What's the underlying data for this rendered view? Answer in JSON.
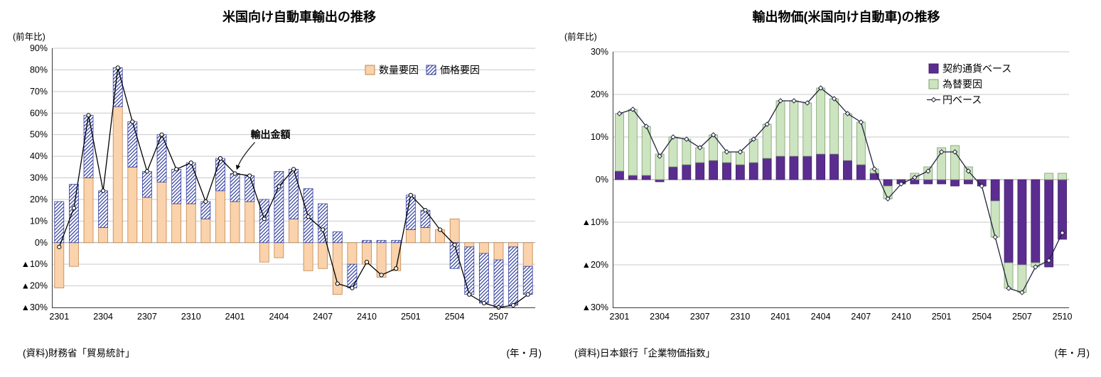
{
  "page": {
    "background": "#ffffff"
  },
  "chart_data": [
    {
      "type": "bar",
      "subtype": "stacked-bar-with-line",
      "title": "米国向け自動車輸出の推移",
      "y_unit": "(前年比)",
      "x_unit": "(年・月)",
      "source": "(資料)財務省「貿易統計」",
      "ylim": [
        -30,
        90
      ],
      "ytick_step": 10,
      "grid": true,
      "categories": [
        "2301",
        "2302",
        "2303",
        "2304",
        "2305",
        "2306",
        "2307",
        "2308",
        "2309",
        "2310",
        "2311",
        "2312",
        "2401",
        "2402",
        "2403",
        "2404",
        "2405",
        "2406",
        "2407",
        "2408",
        "2409",
        "2410",
        "2411",
        "2412",
        "2501",
        "2502",
        "2503",
        "2504",
        "2505",
        "2506",
        "2507",
        "2508",
        "2509"
      ],
      "x_tick_labels": [
        "2301",
        "2304",
        "2307",
        "2310",
        "2401",
        "2404",
        "2407",
        "2410",
        "2501",
        "2504",
        "2507"
      ],
      "series": [
        {
          "name": "数量要因",
          "type": "bar",
          "pattern": "solid",
          "fill": "#FAD2AB",
          "border": "#C0854C",
          "values": [
            -21,
            -11,
            30,
            7,
            63,
            35,
            21,
            28,
            18,
            18,
            11,
            24,
            19,
            19,
            -9,
            -7,
            11,
            -13,
            -12,
            -24,
            -10,
            -10,
            -16,
            -13,
            6,
            7,
            6,
            11,
            -2,
            -5,
            -8,
            -2,
            -11
          ]
        },
        {
          "name": "価格要因",
          "type": "bar",
          "pattern": "diagonal-hatch",
          "fill": "#ffffff",
          "hatch_color": "#3340A0",
          "border": "#3340A0",
          "values": [
            19,
            27,
            29,
            17,
            18,
            21,
            12,
            22,
            16,
            19,
            8,
            15,
            13,
            12,
            20,
            33,
            23,
            25,
            18,
            5,
            -11,
            1,
            1,
            1,
            16,
            8,
            0,
            -12,
            -22,
            -23,
            -22,
            -27,
            -13
          ]
        },
        {
          "name": "輸出金額",
          "type": "line",
          "color": "#000000",
          "marker": "circle",
          "values": [
            -2,
            16,
            59,
            24,
            81,
            56,
            33,
            50,
            34,
            37,
            19,
            39,
            32,
            31,
            11,
            26,
            34,
            12,
            6,
            -19,
            -21,
            -9,
            -15,
            -12,
            22,
            15,
            6,
            -1,
            -24,
            -28,
            -30,
            -29,
            -24
          ]
        }
      ],
      "annotation": {
        "text": "輸出金額",
        "category": "2401"
      }
    },
    {
      "type": "bar",
      "subtype": "stacked-bar-with-line",
      "title": "輸出物価(米国向け自動車)の推移",
      "y_unit": "(前年比)",
      "x_unit": "(年・月)",
      "source": "(資料)日本銀行「企業物価指数」",
      "ylim": [
        -30,
        30
      ],
      "ytick_step": 10,
      "grid": true,
      "categories": [
        "2301",
        "2302",
        "2303",
        "2304",
        "2305",
        "2306",
        "2307",
        "2308",
        "2309",
        "2310",
        "2311",
        "2312",
        "2401",
        "2402",
        "2403",
        "2404",
        "2405",
        "2406",
        "2407",
        "2408",
        "2409",
        "2410",
        "2411",
        "2412",
        "2501",
        "2502",
        "2503",
        "2504",
        "2505",
        "2506",
        "2507",
        "2508",
        "2509",
        "2510"
      ],
      "x_tick_labels": [
        "2301",
        "2304",
        "2307",
        "2310",
        "2401",
        "2404",
        "2407",
        "2410",
        "2501",
        "2504",
        "2507",
        "2510"
      ],
      "series": [
        {
          "name": "契約通貨ベース",
          "type": "bar",
          "pattern": "solid",
          "fill": "#5B2D90",
          "border": "#3F1F66",
          "values": [
            2,
            1,
            1,
            -0.5,
            3,
            3.5,
            4,
            4.5,
            4,
            3.5,
            4,
            5,
            5.5,
            5.5,
            5.5,
            6,
            6,
            4.5,
            3.5,
            1.5,
            -1.5,
            -1,
            -1,
            -1,
            -1,
            -1.5,
            -1,
            -1.5,
            -5,
            -19.5,
            -20,
            -19.5,
            -20.5,
            -14
          ]
        },
        {
          "name": "為替要因",
          "type": "bar",
          "pattern": "solid",
          "fill": "#CDE4C0",
          "border": "#7C9D6E",
          "values": [
            13.5,
            15.5,
            11.5,
            6,
            7,
            6,
            3.5,
            6,
            2.5,
            3,
            5.5,
            8,
            13,
            13,
            12.5,
            15.5,
            13,
            11,
            10,
            1,
            -3,
            0,
            1.5,
            3,
            7.5,
            8,
            3,
            0,
            -8.5,
            -6,
            -6.5,
            -1,
            1.5,
            1.5
          ]
        },
        {
          "name": "円ベース",
          "type": "line",
          "color": "#20203E",
          "marker": "diamond",
          "values": [
            15.5,
            16.5,
            12.5,
            5.5,
            10,
            9.5,
            7.5,
            10.5,
            6.5,
            6.5,
            9.5,
            13,
            18.5,
            18.5,
            18,
            21.5,
            19,
            15.5,
            13.5,
            2.5,
            -4.5,
            -1,
            0.5,
            2,
            6.5,
            6.5,
            2,
            -1.5,
            -13.5,
            -25.5,
            -26.5,
            -20.5,
            -19,
            -12.5
          ]
        }
      ]
    }
  ]
}
